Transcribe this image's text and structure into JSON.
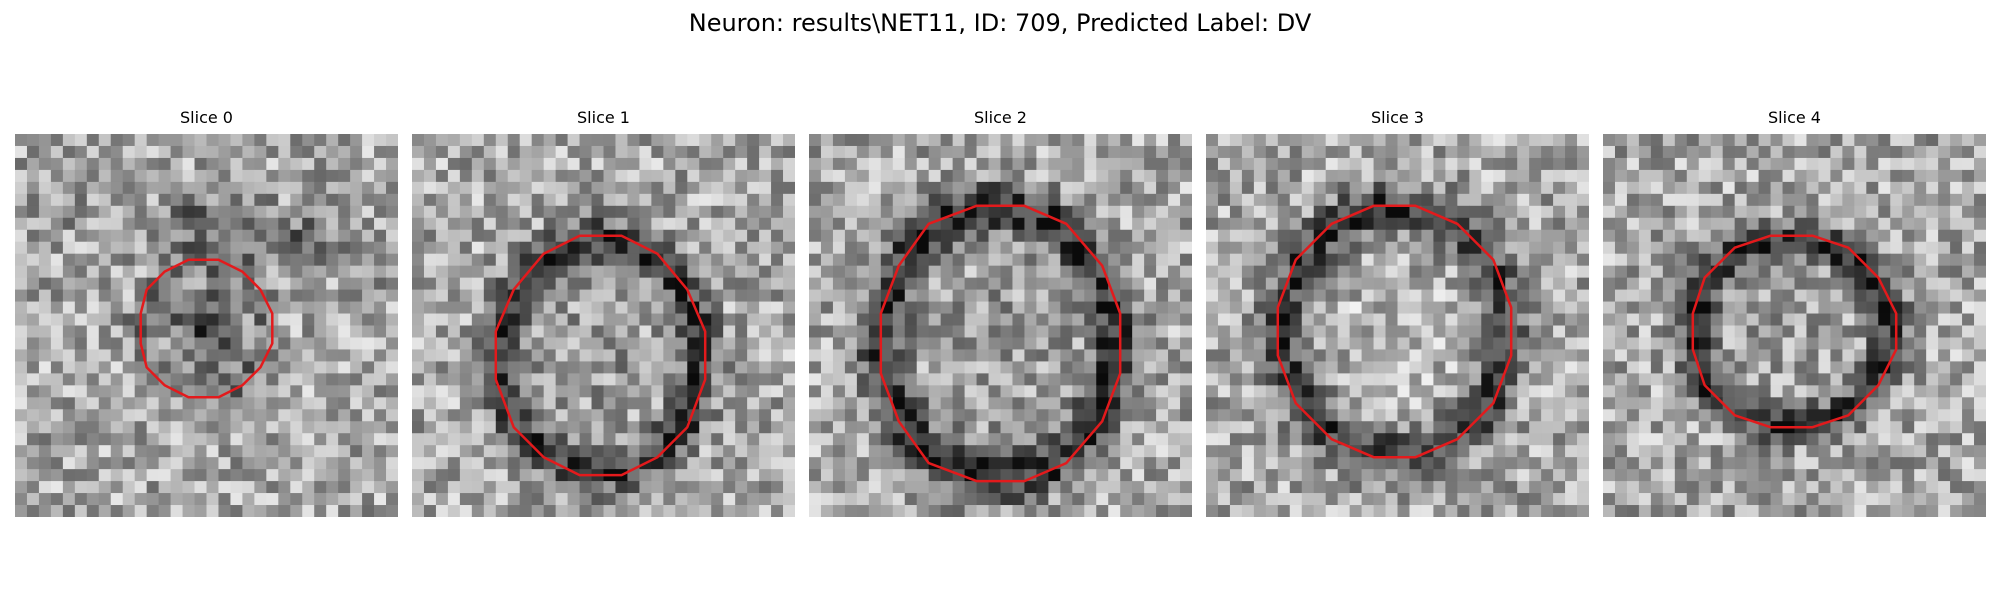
{
  "figure": {
    "title": "Neuron: results\\NET11, ID: 709, Predicted Label: DV"
  },
  "colors": {
    "contour": "#e31a1c",
    "background": "#ffffff"
  },
  "slices": [
    {
      "title": "Slice 0"
    },
    {
      "title": "Slice 1"
    },
    {
      "title": "Slice 2"
    },
    {
      "title": "Slice 3"
    },
    {
      "title": "Slice 4"
    }
  ]
}
